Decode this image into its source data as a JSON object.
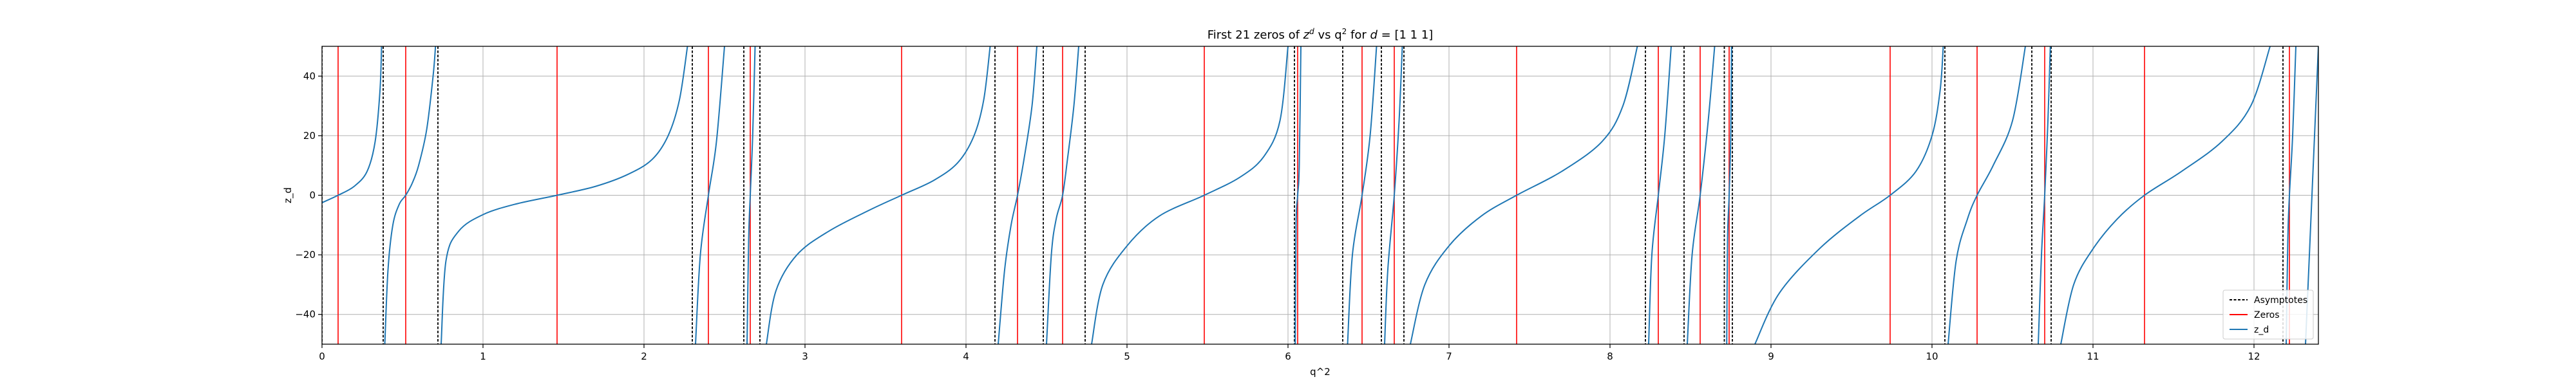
{
  "chart_data": {
    "type": "line",
    "title": "First 21 zeros of z^d vs q^2 for d = [1 1 1]",
    "title_parts": {
      "main": "First 21 zeros of ",
      "z": "z",
      "sup_d": "d",
      "vs": " vs q",
      "sup_2": "2",
      "rest": " for ",
      "d": "d",
      "tail": " = [1 1 1]"
    },
    "xlabel": "q^2",
    "ylabel": "z_d",
    "xlim": [
      0,
      12.4
    ],
    "ylim": [
      -50,
      50
    ],
    "grid": true,
    "x_ticks": [
      0,
      1,
      2,
      3,
      4,
      5,
      6,
      7,
      8,
      9,
      10,
      11,
      12
    ],
    "y_ticks": [
      -40,
      -20,
      0,
      20,
      40
    ],
    "legend_position": "lower-right",
    "legend": [
      {
        "label": "Asymptotes",
        "color": "#000000",
        "style": "dashed"
      },
      {
        "label": "Zeros",
        "color": "#ff0000",
        "style": "solid"
      },
      {
        "label": "z_d",
        "color": "#1f77b4",
        "style": "solid"
      }
    ],
    "colors": {
      "curve": "#1f77b4",
      "zeros": "#ff0000",
      "asymptotes": "#000000",
      "grid": "#b0b0b0"
    },
    "asymptotes": [
      0,
      0.38,
      0.72,
      2.3,
      2.62,
      2.72,
      4.18,
      4.48,
      4.74,
      6.04,
      6.34,
      6.58,
      6.72,
      8.22,
      8.46,
      8.71,
      8.76,
      10.08,
      10.62,
      10.74,
      12.18
    ],
    "zeros": [
      0.1,
      0.52,
      1.46,
      2.4,
      2.66,
      3.6,
      4.32,
      4.6,
      5.48,
      6.06,
      6.46,
      6.66,
      7.42,
      8.3,
      8.56,
      8.74,
      9.74,
      10.28,
      10.7,
      11.32,
      12.22
    ],
    "curve_points": [
      [
        0.0,
        -2.5
      ],
      [
        0.1,
        0.0
      ],
      [
        0.2,
        3.0
      ],
      [
        0.28,
        8.0
      ],
      [
        0.33,
        18.0
      ],
      [
        0.36,
        35.0
      ],
      [
        0.37,
        50.0
      ],
      [
        0.39,
        -50.0
      ],
      [
        0.41,
        -25.0
      ],
      [
        0.44,
        -10.0
      ],
      [
        0.48,
        -3.0
      ],
      [
        0.52,
        0.0
      ],
      [
        0.56,
        4.0
      ],
      [
        0.6,
        10.0
      ],
      [
        0.65,
        22.0
      ],
      [
        0.69,
        40.0
      ],
      [
        0.705,
        50.0
      ],
      [
        0.74,
        -50.0
      ],
      [
        0.77,
        -22.0
      ],
      [
        0.85,
        -12.0
      ],
      [
        1.0,
        -6.5
      ],
      [
        1.2,
        -3.0
      ],
      [
        1.46,
        0.0
      ],
      [
        1.7,
        3.0
      ],
      [
        1.9,
        7.0
      ],
      [
        2.05,
        12.0
      ],
      [
        2.15,
        20.0
      ],
      [
        2.22,
        32.0
      ],
      [
        2.27,
        50.0
      ],
      [
        2.32,
        -50.0
      ],
      [
        2.35,
        -20.0
      ],
      [
        2.4,
        0.0
      ],
      [
        2.45,
        18.0
      ],
      [
        2.5,
        50.0
      ],
      [
        2.64,
        -50.0
      ],
      [
        2.65,
        -15.0
      ],
      [
        2.66,
        0.0
      ],
      [
        2.675,
        20.0
      ],
      [
        2.69,
        50.0
      ],
      [
        2.76,
        -50.0
      ],
      [
        2.82,
        -32.0
      ],
      [
        2.95,
        -20.0
      ],
      [
        3.15,
        -12.0
      ],
      [
        3.4,
        -5.0
      ],
      [
        3.6,
        0.0
      ],
      [
        3.8,
        5.0
      ],
      [
        3.95,
        11.0
      ],
      [
        4.05,
        20.0
      ],
      [
        4.11,
        32.0
      ],
      [
        4.15,
        50.0
      ],
      [
        4.2,
        -50.0
      ],
      [
        4.24,
        -25.0
      ],
      [
        4.28,
        -10.0
      ],
      [
        4.32,
        0.0
      ],
      [
        4.36,
        12.0
      ],
      [
        4.41,
        30.0
      ],
      [
        4.44,
        50.0
      ],
      [
        4.5,
        -50.0
      ],
      [
        4.53,
        -20.0
      ],
      [
        4.56,
        -8.0
      ],
      [
        4.6,
        0.0
      ],
      [
        4.63,
        12.0
      ],
      [
        4.67,
        30.0
      ],
      [
        4.7,
        50.0
      ],
      [
        4.78,
        -50.0
      ],
      [
        4.85,
        -30.0
      ],
      [
        5.0,
        -17.0
      ],
      [
        5.2,
        -7.0
      ],
      [
        5.48,
        0.0
      ],
      [
        5.7,
        6.0
      ],
      [
        5.85,
        13.0
      ],
      [
        5.95,
        25.0
      ],
      [
        6.0,
        50.0
      ],
      [
        6.045,
        -50.0
      ],
      [
        6.05,
        -10.0
      ],
      [
        6.06,
        0.0
      ],
      [
        6.07,
        10.0
      ],
      [
        6.08,
        50.0
      ],
      [
        6.37,
        -50.0
      ],
      [
        6.4,
        -20.0
      ],
      [
        6.46,
        0.0
      ],
      [
        6.51,
        20.0
      ],
      [
        6.55,
        50.0
      ],
      [
        6.6,
        -50.0
      ],
      [
        6.62,
        -25.0
      ],
      [
        6.66,
        0.0
      ],
      [
        6.69,
        25.0
      ],
      [
        6.71,
        50.0
      ],
      [
        6.76,
        -50.0
      ],
      [
        6.85,
        -30.0
      ],
      [
        7.0,
        -17.0
      ],
      [
        7.2,
        -7.0
      ],
      [
        7.42,
        0.0
      ],
      [
        7.7,
        8.0
      ],
      [
        7.95,
        18.0
      ],
      [
        8.08,
        30.0
      ],
      [
        8.17,
        50.0
      ],
      [
        8.24,
        -50.0
      ],
      [
        8.26,
        -20.0
      ],
      [
        8.3,
        0.0
      ],
      [
        8.34,
        20.0
      ],
      [
        8.38,
        50.0
      ],
      [
        8.48,
        -50.0
      ],
      [
        8.51,
        -20.0
      ],
      [
        8.56,
        0.0
      ],
      [
        8.61,
        25.0
      ],
      [
        8.65,
        50.0
      ],
      [
        8.725,
        -50.0
      ],
      [
        8.73,
        -15.0
      ],
      [
        8.74,
        0.0
      ],
      [
        8.75,
        20.0
      ],
      [
        8.755,
        50.0
      ],
      [
        8.9,
        -50.0
      ],
      [
        9.05,
        -33.0
      ],
      [
        9.3,
        -18.0
      ],
      [
        9.55,
        -7.0
      ],
      [
        9.74,
        0.0
      ],
      [
        9.9,
        8.0
      ],
      [
        10.0,
        20.0
      ],
      [
        10.05,
        35.0
      ],
      [
        10.07,
        50.0
      ],
      [
        10.1,
        -50.0
      ],
      [
        10.15,
        -22.0
      ],
      [
        10.22,
        -8.0
      ],
      [
        10.28,
        0.0
      ],
      [
        10.38,
        10.0
      ],
      [
        10.5,
        25.0
      ],
      [
        10.58,
        50.0
      ],
      [
        10.66,
        -50.0
      ],
      [
        10.68,
        -20.0
      ],
      [
        10.7,
        0.0
      ],
      [
        10.72,
        25.0
      ],
      [
        10.735,
        50.0
      ],
      [
        10.8,
        -50.0
      ],
      [
        10.88,
        -30.0
      ],
      [
        11.0,
        -18.0
      ],
      [
        11.15,
        -8.0
      ],
      [
        11.32,
        0.0
      ],
      [
        11.55,
        8.0
      ],
      [
        11.8,
        18.0
      ],
      [
        11.98,
        30.0
      ],
      [
        12.1,
        50.0
      ],
      [
        12.2,
        -50.0
      ],
      [
        12.21,
        -15.0
      ],
      [
        12.22,
        0.0
      ],
      [
        12.24,
        20.0
      ],
      [
        12.26,
        50.0
      ],
      [
        12.32,
        -50.0
      ],
      [
        12.36,
        0.0
      ],
      [
        12.4,
        50.0
      ]
    ]
  }
}
